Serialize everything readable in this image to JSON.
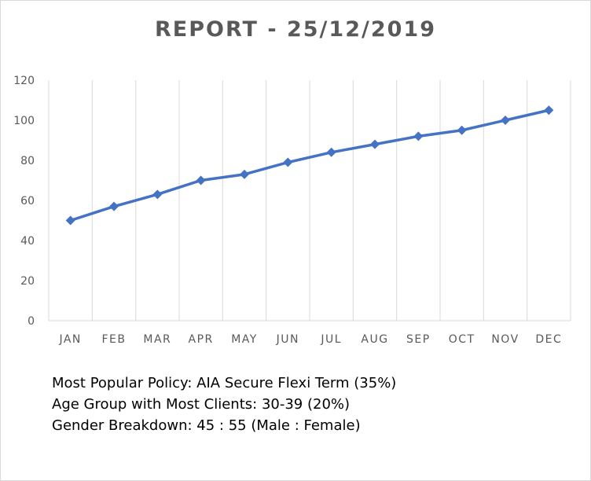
{
  "chart_data": {
    "type": "line",
    "title": "REPORT - 25/12/2019",
    "categories": [
      "JAN",
      "FEB",
      "MAR",
      "APR",
      "MAY",
      "JUN",
      "JUL",
      "AUG",
      "SEP",
      "OCT",
      "NOV",
      "DEC"
    ],
    "values": [
      50,
      57,
      63,
      70,
      73,
      79,
      84,
      88,
      92,
      95,
      100,
      105
    ],
    "ylim": [
      0,
      120
    ],
    "yticks": [
      0,
      20,
      40,
      60,
      80,
      100,
      120
    ],
    "xlabel": "",
    "ylabel": "",
    "grid": "vertical",
    "legend": "none",
    "series_color": "#4472C4",
    "grid_color": "#d9d9d9"
  },
  "notes": {
    "popular_policy": "Most Popular Policy:  AIA Secure Flexi Term (35%)",
    "age_group": "Age Group with Most Clients: 30-39 (20%)",
    "gender": "Gender Breakdown: 45 : 55 (Male : Female)"
  }
}
